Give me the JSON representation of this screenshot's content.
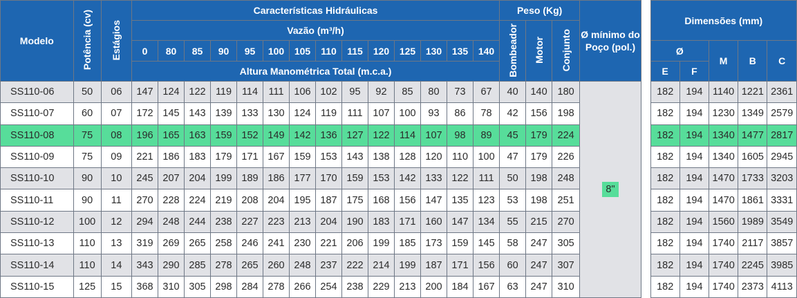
{
  "header": {
    "modelo": "Modelo",
    "potencia": "Potência (cv)",
    "estagios": "Estágios",
    "caracteristicas": "Características Hidráulicas",
    "vazao": "Vazão (m³/h)",
    "vazao_cols": [
      "0",
      "80",
      "85",
      "90",
      "95",
      "100",
      "105",
      "110",
      "115",
      "120",
      "125",
      "130",
      "135",
      "140"
    ],
    "altura": "Altura Manométrica Total (m.c.a.)",
    "peso": "Peso (Kg)",
    "bombeador": "Bombeador",
    "motor": "Motor",
    "conjunto": "Conjunto",
    "poco": "Ø mínimo do Poço (pol.)",
    "dimensoes": "Dimensões (mm)",
    "diam": "Ø",
    "e": "E",
    "f": "F",
    "m": "M",
    "b": "B",
    "c": "C"
  },
  "poco_value": "8\"",
  "highlight_color": "#57dd9a",
  "header_color": "#1e66b1",
  "rows": [
    {
      "model": "SS110-06",
      "pot": "50",
      "est": "06",
      "h": [
        "147",
        "124",
        "122",
        "119",
        "114",
        "111",
        "106",
        "102",
        "95",
        "92",
        "85",
        "80",
        "73",
        "67"
      ],
      "bomb": "40",
      "motor": "140",
      "conj": "180",
      "e": "182",
      "f": "194",
      "m": "1140",
      "b": "1221",
      "c": "2361"
    },
    {
      "model": "SS110-07",
      "pot": "60",
      "est": "07",
      "h": [
        "172",
        "145",
        "143",
        "139",
        "133",
        "130",
        "124",
        "119",
        "111",
        "107",
        "100",
        "93",
        "86",
        "78"
      ],
      "bomb": "42",
      "motor": "156",
      "conj": "198",
      "e": "182",
      "f": "194",
      "m": "1230",
      "b": "1349",
      "c": "2579"
    },
    {
      "model": "SS110-08",
      "pot": "75",
      "est": "08",
      "h": [
        "196",
        "165",
        "163",
        "159",
        "152",
        "149",
        "142",
        "136",
        "127",
        "122",
        "114",
        "107",
        "98",
        "89"
      ],
      "bomb": "45",
      "motor": "179",
      "conj": "224",
      "e": "182",
      "f": "194",
      "m": "1340",
      "b": "1477",
      "c": "2817"
    },
    {
      "model": "SS110-09",
      "pot": "75",
      "est": "09",
      "h": [
        "221",
        "186",
        "183",
        "179",
        "171",
        "167",
        "159",
        "153",
        "143",
        "138",
        "128",
        "120",
        "110",
        "100"
      ],
      "bomb": "47",
      "motor": "179",
      "conj": "226",
      "e": "182",
      "f": "194",
      "m": "1340",
      "b": "1605",
      "c": "2945"
    },
    {
      "model": "SS110-10",
      "pot": "90",
      "est": "10",
      "h": [
        "245",
        "207",
        "204",
        "199",
        "189",
        "186",
        "177",
        "170",
        "159",
        "153",
        "142",
        "133",
        "122",
        "111"
      ],
      "bomb": "50",
      "motor": "198",
      "conj": "248",
      "e": "182",
      "f": "194",
      "m": "1470",
      "b": "1733",
      "c": "3203"
    },
    {
      "model": "SS110-11",
      "pot": "90",
      "est": "11",
      "h": [
        "270",
        "228",
        "224",
        "219",
        "208",
        "204",
        "195",
        "187",
        "175",
        "168",
        "156",
        "147",
        "135",
        "123"
      ],
      "bomb": "53",
      "motor": "198",
      "conj": "251",
      "e": "182",
      "f": "194",
      "m": "1470",
      "b": "1861",
      "c": "3331"
    },
    {
      "model": "SS110-12",
      "pot": "100",
      "est": "12",
      "h": [
        "294",
        "248",
        "244",
        "238",
        "227",
        "223",
        "213",
        "204",
        "190",
        "183",
        "171",
        "160",
        "147",
        "134"
      ],
      "bomb": "55",
      "motor": "215",
      "conj": "270",
      "e": "182",
      "f": "194",
      "m": "1560",
      "b": "1989",
      "c": "3549"
    },
    {
      "model": "SS110-13",
      "pot": "110",
      "est": "13",
      "h": [
        "319",
        "269",
        "265",
        "258",
        "246",
        "241",
        "230",
        "221",
        "206",
        "199",
        "185",
        "173",
        "159",
        "145"
      ],
      "bomb": "58",
      "motor": "247",
      "conj": "305",
      "e": "182",
      "f": "194",
      "m": "1740",
      "b": "2117",
      "c": "3857"
    },
    {
      "model": "SS110-14",
      "pot": "110",
      "est": "14",
      "h": [
        "343",
        "290",
        "285",
        "278",
        "265",
        "260",
        "248",
        "237",
        "222",
        "214",
        "199",
        "187",
        "171",
        "156"
      ],
      "bomb": "60",
      "motor": "247",
      "conj": "307",
      "e": "182",
      "f": "194",
      "m": "1740",
      "b": "2245",
      "c": "3985"
    },
    {
      "model": "SS110-15",
      "pot": "125",
      "est": "15",
      "h": [
        "368",
        "310",
        "305",
        "298",
        "284",
        "278",
        "266",
        "254",
        "238",
        "229",
        "213",
        "200",
        "184",
        "167"
      ],
      "bomb": "63",
      "motor": "247",
      "conj": "310",
      "e": "182",
      "f": "194",
      "m": "1740",
      "b": "2373",
      "c": "4113"
    }
  ]
}
